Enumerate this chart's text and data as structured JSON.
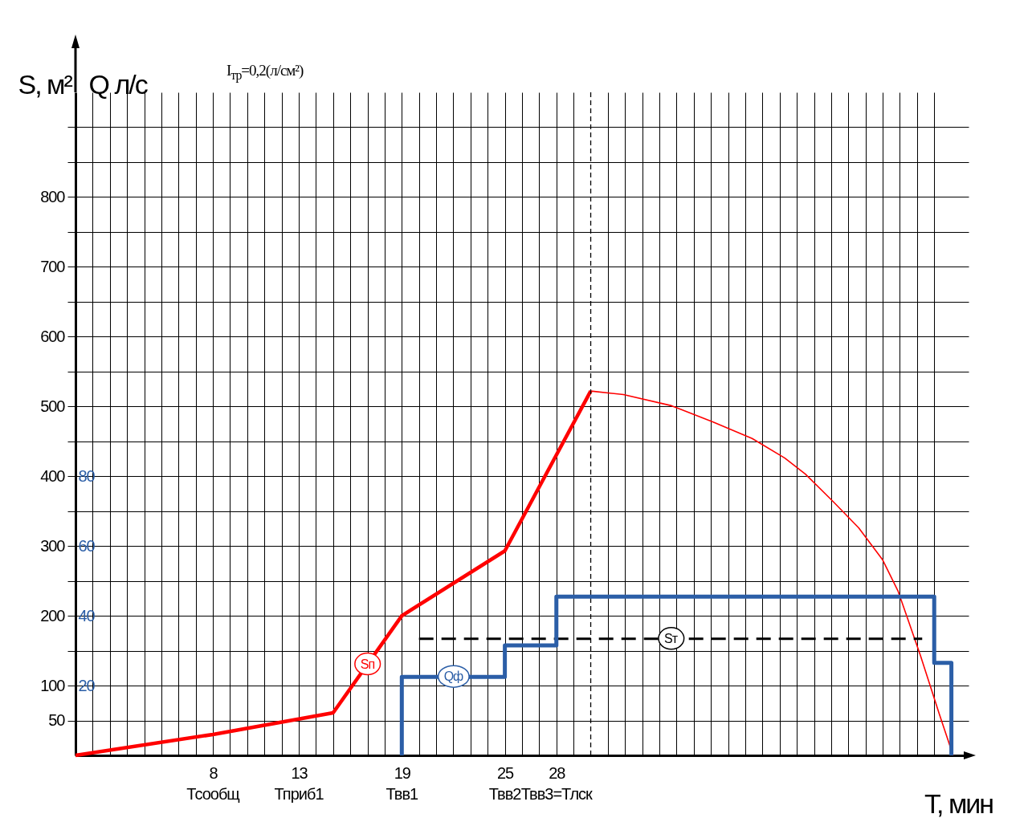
{
  "chart_data": {
    "type": "line",
    "ylabel": "S, м²",
    "y2label": "Q л/с",
    "xlabel": "Т, мин",
    "annotations": [
      "I$_{тр}$=0,2(л/см²)",
      "Тсообщ",
      "Тприб1",
      "Твв1",
      "Твв2",
      "Твв3=Тлск"
    ],
    "xlim": [
      0,
      52
    ],
    "xticks": [
      {
        "value": 1,
        "label": null
      },
      {
        "value": 2,
        "label": null
      },
      {
        "value": 3,
        "label": null
      },
      {
        "value": 4,
        "label": null
      },
      {
        "value": 5,
        "label": null
      },
      {
        "value": 6,
        "label": null
      },
      {
        "value": 7,
        "label": null
      },
      8,
      {
        "value": 9,
        "label": null
      },
      {
        "value": 10,
        "label": null
      },
      {
        "value": 11,
        "label": null
      },
      {
        "value": 12,
        "label": null
      },
      13,
      {
        "value": 14,
        "label": null
      },
      {
        "value": 15,
        "label": null
      },
      {
        "value": 16,
        "label": null
      },
      {
        "value": 17,
        "label": null
      },
      {
        "value": 18,
        "label": null
      },
      19,
      {
        "value": 20,
        "label": null
      },
      {
        "value": 21,
        "label": null
      },
      {
        "value": 22,
        "label": null
      },
      {
        "value": 23,
        "label": null
      },
      {
        "value": 24,
        "label": null
      },
      25,
      {
        "value": 26,
        "label": null
      },
      {
        "value": 27,
        "label": null
      },
      28,
      {
        "value": 29,
        "label": null
      },
      {
        "value": 31,
        "label": null
      },
      {
        "value": 32,
        "label": null
      },
      {
        "value": 33,
        "label": null
      },
      {
        "value": 34,
        "label": null
      },
      {
        "value": 35,
        "label": null
      },
      {
        "value": 36,
        "label": null
      },
      {
        "value": 37,
        "label": null
      },
      {
        "value": 38,
        "label": null
      },
      {
        "value": 39,
        "label": null
      },
      {
        "value": 40,
        "label": null
      },
      {
        "value": 41,
        "label": null
      },
      {
        "value": 42,
        "label": null
      },
      {
        "value": 43,
        "label": null
      },
      {
        "value": 44,
        "label": null
      },
      {
        "value": 45,
        "label": null
      },
      {
        "value": 46,
        "label": null
      },
      {
        "value": 47,
        "label": null
      },
      {
        "value": 48,
        "label": null
      },
      {
        "value": 49,
        "label": null
      },
      {
        "value": 50,
        "label": null
      }
    ],
    "ylim": [
      0,
      950
    ],
    "yticks": [
      50,
      100,
      {
        "value": 150,
        "label": null
      },
      200,
      {
        "value": 250,
        "label": null
      },
      300,
      {
        "value": 350,
        "label": null
      },
      400,
      {
        "value": 450,
        "label": null
      },
      500,
      {
        "value": 550,
        "label": null
      },
      600,
      {
        "value": 650,
        "label": null
      },
      700,
      {
        "value": 750,
        "label": null
      },
      800,
      {
        "value": 850,
        "label": null
      },
      {
        "value": 900,
        "label": null
      }
    ],
    "y2lim": [
      0,
      190
    ],
    "y2ticks": [
      20,
      40,
      60,
      80
    ],
    "grid": true,
    "series": [
      {
        "name": "Sп",
        "type": "line",
        "color": "#ff0000",
        "x": [
          0,
          8,
          15,
          19,
          25,
          30
        ],
        "values": [
          0,
          30,
          61,
          200,
          293,
          522
        ]
      },
      {
        "type": "line",
        "color": "#ff0000",
        "x": [
          30,
          31.9,
          34.7,
          37.1,
          39.4,
          41.3,
          42.5,
          44.1,
          45.6,
          47,
          47.9,
          49.2,
          50.3,
          51.1
        ],
        "values": [
          522,
          517,
          501,
          478,
          454,
          426,
          403,
          364,
          326,
          280,
          235,
          143,
          59,
          0
        ]
      },
      {
        "name": "Sт",
        "type": "line",
        "color": "#000000",
        "line_style": "dashed",
        "x": [
          20,
          49.3
        ],
        "values": [
          167,
          167
        ]
      },
      {
        "name": "Qф",
        "type": "step",
        "axis": "y2",
        "color": "#2b5ea7",
        "x": [
          19,
          19,
          25,
          28,
          50,
          51
        ],
        "values": [
          0,
          22.5,
          31.5,
          45.5,
          26.5,
          0
        ]
      }
    ],
    "ref_lines": [
      {
        "axis": "x",
        "value": 30,
        "color": "#000000",
        "line_style": "dashed"
      }
    ]
  }
}
